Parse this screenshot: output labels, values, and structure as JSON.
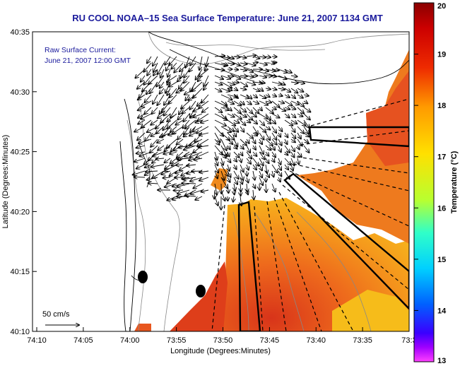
{
  "title": "RU COOL   NOAA–15  Sea Surface Temperature:  June 21, 2007 1134 GMT",
  "overlay": {
    "line1": "Raw Surface Current:",
    "line2": "June 21, 2007 12:00 GMT"
  },
  "scale_arrow_label": "50 cm/s",
  "axes": {
    "xlabel": "Longitude (Degrees:Minutes)",
    "ylabel": "Latitude (Degrees:Minutes)",
    "x_ticks": [
      "74:10",
      "74:05",
      "74:00",
      "73:55",
      "73:50",
      "73:45",
      "73:40",
      "73:35",
      "73:3"
    ],
    "y_ticks": [
      "40:35",
      "40:30",
      "40:25",
      "40:20",
      "40:15",
      "40:10"
    ]
  },
  "colorbar": {
    "label": "Temperature (°C)",
    "ticks": [
      "20",
      "19",
      "18",
      "17",
      "16",
      "15",
      "14",
      "13"
    ],
    "min": 13,
    "max": 20
  },
  "colors": {
    "title": "#1a1a9c",
    "sst_warm": "#e34a1c",
    "sst_mid": "#f0891e",
    "sst_cool": "#f6b41a"
  }
}
